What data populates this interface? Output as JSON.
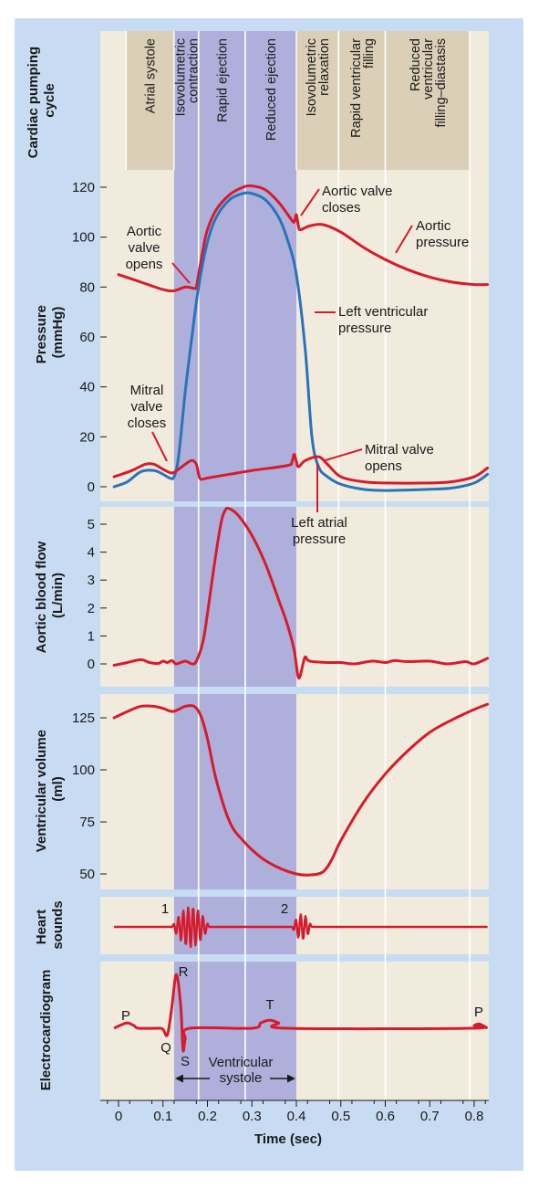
{
  "figure": {
    "phase_row_label": "Cardiac pumping cycle",
    "colors": {
      "outer_background": "#c7dcf2",
      "panel_background": "#f1ebdd",
      "systole_band": "#aeb0db",
      "phase_header": "#dbd0b7",
      "red_trace": "#d61b2c",
      "blue_trace": "#2a73bb"
    }
  },
  "phases": [
    {
      "label": "Atrial systole",
      "lines": [
        "Atrial systole"
      ]
    },
    {
      "label": "Isovolumetric contraction",
      "lines": [
        "Isovolumetric",
        "contraction"
      ]
    },
    {
      "label": "Rapid ejection",
      "lines": [
        "Rapid ejection"
      ]
    },
    {
      "label": "Reduced ejection",
      "lines": [
        "Reduced ejection"
      ]
    },
    {
      "label": "Isovolumetric relaxation",
      "lines": [
        "Isovolumetric",
        "relaxation"
      ]
    },
    {
      "label": "Rapid ventricular filling",
      "lines": [
        "Rapid ventricular",
        "filling"
      ]
    },
    {
      "label": "Reduced ventricular filling–diastasis",
      "lines": [
        "Reduced",
        "ventricular",
        "filling–diastasis"
      ]
    }
  ],
  "chart_data": [
    {
      "type": "line",
      "name": "pressure",
      "ylabel": "Pressure (mmHg)",
      "ylabel_lines": [
        "Pressure",
        "(mmHg)"
      ],
      "yticks": [
        0,
        20,
        40,
        60,
        80,
        100,
        120
      ],
      "ylim": [
        0,
        125
      ],
      "series": [
        {
          "name": "Aortic pressure",
          "color": "#d61b2c",
          "points": [
            [
              0,
              85
            ],
            [
              0.05,
              82
            ],
            [
              0.1,
              79
            ],
            [
              0.125,
              78.5
            ],
            [
              0.15,
              80
            ],
            [
              0.17,
              79.5
            ],
            [
              0.175,
              80
            ],
            [
              0.18,
              85
            ],
            [
              0.19,
              95
            ],
            [
              0.2,
              103
            ],
            [
              0.22,
              111
            ],
            [
              0.25,
              117
            ],
            [
              0.28,
              120
            ],
            [
              0.3,
              120.5
            ],
            [
              0.33,
              119
            ],
            [
              0.36,
              114
            ],
            [
              0.385,
              108
            ],
            [
              0.395,
              106
            ],
            [
              0.4,
              109
            ],
            [
              0.405,
              104
            ],
            [
              0.41,
              103
            ],
            [
              0.43,
              104.5
            ],
            [
              0.46,
              105
            ],
            [
              0.5,
              102
            ],
            [
              0.55,
              96
            ],
            [
              0.6,
              91
            ],
            [
              0.65,
              87
            ],
            [
              0.7,
              84
            ],
            [
              0.75,
              82
            ],
            [
              0.8,
              81
            ],
            [
              0.83,
              81
            ]
          ]
        },
        {
          "name": "Left ventricular pressure",
          "color": "#2a73bb",
          "points": [
            [
              -0.01,
              0
            ],
            [
              0.02,
              2
            ],
            [
              0.05,
              6
            ],
            [
              0.08,
              6.5
            ],
            [
              0.1,
              5
            ],
            [
              0.115,
              3.5
            ],
            [
              0.125,
              4
            ],
            [
              0.135,
              12
            ],
            [
              0.15,
              38
            ],
            [
              0.165,
              60
            ],
            [
              0.18,
              80
            ],
            [
              0.2,
              98
            ],
            [
              0.22,
              108
            ],
            [
              0.25,
              115
            ],
            [
              0.28,
              117.5
            ],
            [
              0.3,
              117.5
            ],
            [
              0.33,
              115
            ],
            [
              0.36,
              108
            ],
            [
              0.38,
              99
            ],
            [
              0.4,
              85
            ],
            [
              0.42,
              55
            ],
            [
              0.435,
              20
            ],
            [
              0.45,
              8
            ],
            [
              0.47,
              4
            ],
            [
              0.5,
              1
            ],
            [
              0.55,
              -1
            ],
            [
              0.6,
              -1.5
            ],
            [
              0.7,
              -1
            ],
            [
              0.75,
              -0.5
            ],
            [
              0.8,
              1.5
            ],
            [
              0.83,
              5
            ]
          ]
        },
        {
          "name": "Left atrial pressure",
          "color": "#d61b2c",
          "points": [
            [
              -0.01,
              4
            ],
            [
              0.03,
              6.5
            ],
            [
              0.06,
              9
            ],
            [
              0.08,
              9
            ],
            [
              0.1,
              7
            ],
            [
              0.12,
              5.5
            ],
            [
              0.135,
              7
            ],
            [
              0.15,
              9
            ],
            [
              0.165,
              10.5
            ],
            [
              0.175,
              9
            ],
            [
              0.18,
              5
            ],
            [
              0.185,
              3
            ],
            [
              0.2,
              3.5
            ],
            [
              0.25,
              5
            ],
            [
              0.3,
              6.5
            ],
            [
              0.38,
              8.5
            ],
            [
              0.39,
              10
            ],
            [
              0.395,
              13
            ],
            [
              0.4,
              10
            ],
            [
              0.405,
              8
            ],
            [
              0.42,
              10.5
            ],
            [
              0.45,
              12
            ],
            [
              0.47,
              9
            ],
            [
              0.5,
              4
            ],
            [
              0.55,
              2
            ],
            [
              0.6,
              1.5
            ],
            [
              0.7,
              1.5
            ],
            [
              0.75,
              2
            ],
            [
              0.8,
              4
            ],
            [
              0.83,
              7.5
            ]
          ]
        }
      ],
      "annotations": [
        {
          "lines": [
            "Aortic valve",
            "closes"
          ]
        },
        {
          "lines": [
            "Aortic",
            "pressure"
          ]
        },
        {
          "lines": [
            "Aortic",
            "valve",
            "opens"
          ]
        },
        {
          "lines": [
            "Left ventricular",
            "pressure"
          ]
        },
        {
          "lines": [
            "Mitral",
            "valve",
            "closes"
          ]
        },
        {
          "lines": [
            "Mitral valve",
            "opens"
          ]
        },
        {
          "lines": [
            "Left atrial",
            "pressure"
          ]
        }
      ]
    },
    {
      "type": "line",
      "name": "aortic-flow",
      "ylabel": "Aortic blood flow (L/min)",
      "ylabel_lines": [
        "Aortic blood flow",
        "(L/min)"
      ],
      "yticks": [
        0,
        1,
        2,
        3,
        4,
        5
      ],
      "ylim": [
        -0.5,
        5.7
      ],
      "series": [
        {
          "name": "Aortic blood flow",
          "color": "#d61b2c",
          "points": [
            [
              -0.01,
              -0.05
            ],
            [
              0.02,
              0.05
            ],
            [
              0.05,
              0.15
            ],
            [
              0.07,
              0.05
            ],
            [
              0.09,
              0.02
            ],
            [
              0.1,
              0.1
            ],
            [
              0.11,
              0.05
            ],
            [
              0.12,
              0.12
            ],
            [
              0.13,
              0.0
            ],
            [
              0.15,
              0.1
            ],
            [
              0.165,
              0.0
            ],
            [
              0.175,
              0.1
            ],
            [
              0.19,
              0.8
            ],
            [
              0.2,
              1.8
            ],
            [
              0.215,
              3.5
            ],
            [
              0.23,
              5.0
            ],
            [
              0.24,
              5.5
            ],
            [
              0.25,
              5.55
            ],
            [
              0.27,
              5.3
            ],
            [
              0.3,
              4.6
            ],
            [
              0.33,
              3.6
            ],
            [
              0.36,
              2.3
            ],
            [
              0.38,
              1.4
            ],
            [
              0.395,
              0.5
            ],
            [
              0.405,
              -0.5
            ],
            [
              0.415,
              0.0
            ],
            [
              0.42,
              0.25
            ],
            [
              0.43,
              0.1
            ],
            [
              0.47,
              0.05
            ],
            [
              0.5,
              0.05
            ],
            [
              0.53,
              0.0
            ],
            [
              0.57,
              0.1
            ],
            [
              0.6,
              0.05
            ],
            [
              0.62,
              0.12
            ],
            [
              0.65,
              0.08
            ],
            [
              0.7,
              0.1
            ],
            [
              0.74,
              0.0
            ],
            [
              0.78,
              0.08
            ],
            [
              0.8,
              0.0
            ],
            [
              0.83,
              0.2
            ]
          ]
        }
      ]
    },
    {
      "type": "line",
      "name": "ventricular-volume",
      "ylabel": "Ventricular volume (ml)",
      "ylabel_lines": [
        "Ventricular volume",
        "(ml)"
      ],
      "yticks": [
        50,
        75,
        100,
        125
      ],
      "ylim": [
        43,
        140
      ],
      "series": [
        {
          "name": "Ventricular volume",
          "color": "#d61b2c",
          "points": [
            [
              -0.01,
              125
            ],
            [
              0.02,
              128
            ],
            [
              0.05,
              130.5
            ],
            [
              0.08,
              130.5
            ],
            [
              0.1,
              129.5
            ],
            [
              0.12,
              128
            ],
            [
              0.135,
              129
            ],
            [
              0.15,
              130.5
            ],
            [
              0.17,
              130.5
            ],
            [
              0.185,
              126
            ],
            [
              0.2,
              115
            ],
            [
              0.22,
              95
            ],
            [
              0.25,
              75
            ],
            [
              0.28,
              66
            ],
            [
              0.32,
              58
            ],
            [
              0.36,
              53
            ],
            [
              0.4,
              50
            ],
            [
              0.43,
              49.5
            ],
            [
              0.46,
              51
            ],
            [
              0.48,
              57
            ],
            [
              0.5,
              66
            ],
            [
              0.55,
              84
            ],
            [
              0.6,
              98
            ],
            [
              0.65,
              109
            ],
            [
              0.7,
              118
            ],
            [
              0.75,
              124
            ],
            [
              0.8,
              129
            ],
            [
              0.83,
              131.5
            ]
          ]
        }
      ]
    },
    {
      "type": "line",
      "name": "heart-sounds",
      "ylabel": "Heart sounds",
      "ylabel_lines": [
        "Heart",
        "sounds"
      ],
      "labels": [
        "1",
        "2"
      ],
      "series": [
        {
          "name": "Heart sounds",
          "color": "#d61b2c"
        }
      ]
    },
    {
      "type": "line",
      "name": "ecg",
      "ylabel": "Electrocardiogram",
      "ylabel_lines": [
        "Electrocardiogram"
      ],
      "xlabel": "Time (sec)",
      "xticks": [
        0,
        0.1,
        0.2,
        0.3,
        0.4,
        0.5,
        0.6,
        0.7,
        0.8
      ],
      "xlim": [
        -0.04,
        0.83
      ],
      "systole_label_lines": [
        "Ventricular",
        "systole"
      ],
      "wave_labels": [
        "P",
        "Q",
        "R",
        "S",
        "T",
        "P"
      ],
      "series": [
        {
          "name": "Electrocardiogram",
          "color": "#d61b2c",
          "points": [
            [
              -0.01,
              0
            ],
            [
              0.005,
              0.06
            ],
            [
              0.02,
              0.1
            ],
            [
              0.035,
              0.05
            ],
            [
              0.045,
              0
            ],
            [
              0.09,
              0
            ],
            [
              0.1,
              -0.02
            ],
            [
              0.11,
              -0.12
            ],
            [
              0.12,
              0.4
            ],
            [
              0.13,
              1.0
            ],
            [
              0.14,
              0.4
            ],
            [
              0.145,
              -0.4
            ],
            [
              0.15,
              -0.2
            ],
            [
              0.16,
              0
            ],
            [
              0.3,
              0
            ],
            [
              0.32,
              0.1
            ],
            [
              0.34,
              0.15
            ],
            [
              0.36,
              0.1
            ],
            [
              0.38,
              0
            ],
            [
              0.79,
              0
            ],
            [
              0.8,
              0.05
            ],
            [
              0.81,
              0.08
            ],
            [
              0.82,
              0.05
            ],
            [
              0.83,
              0
            ]
          ]
        }
      ]
    }
  ]
}
